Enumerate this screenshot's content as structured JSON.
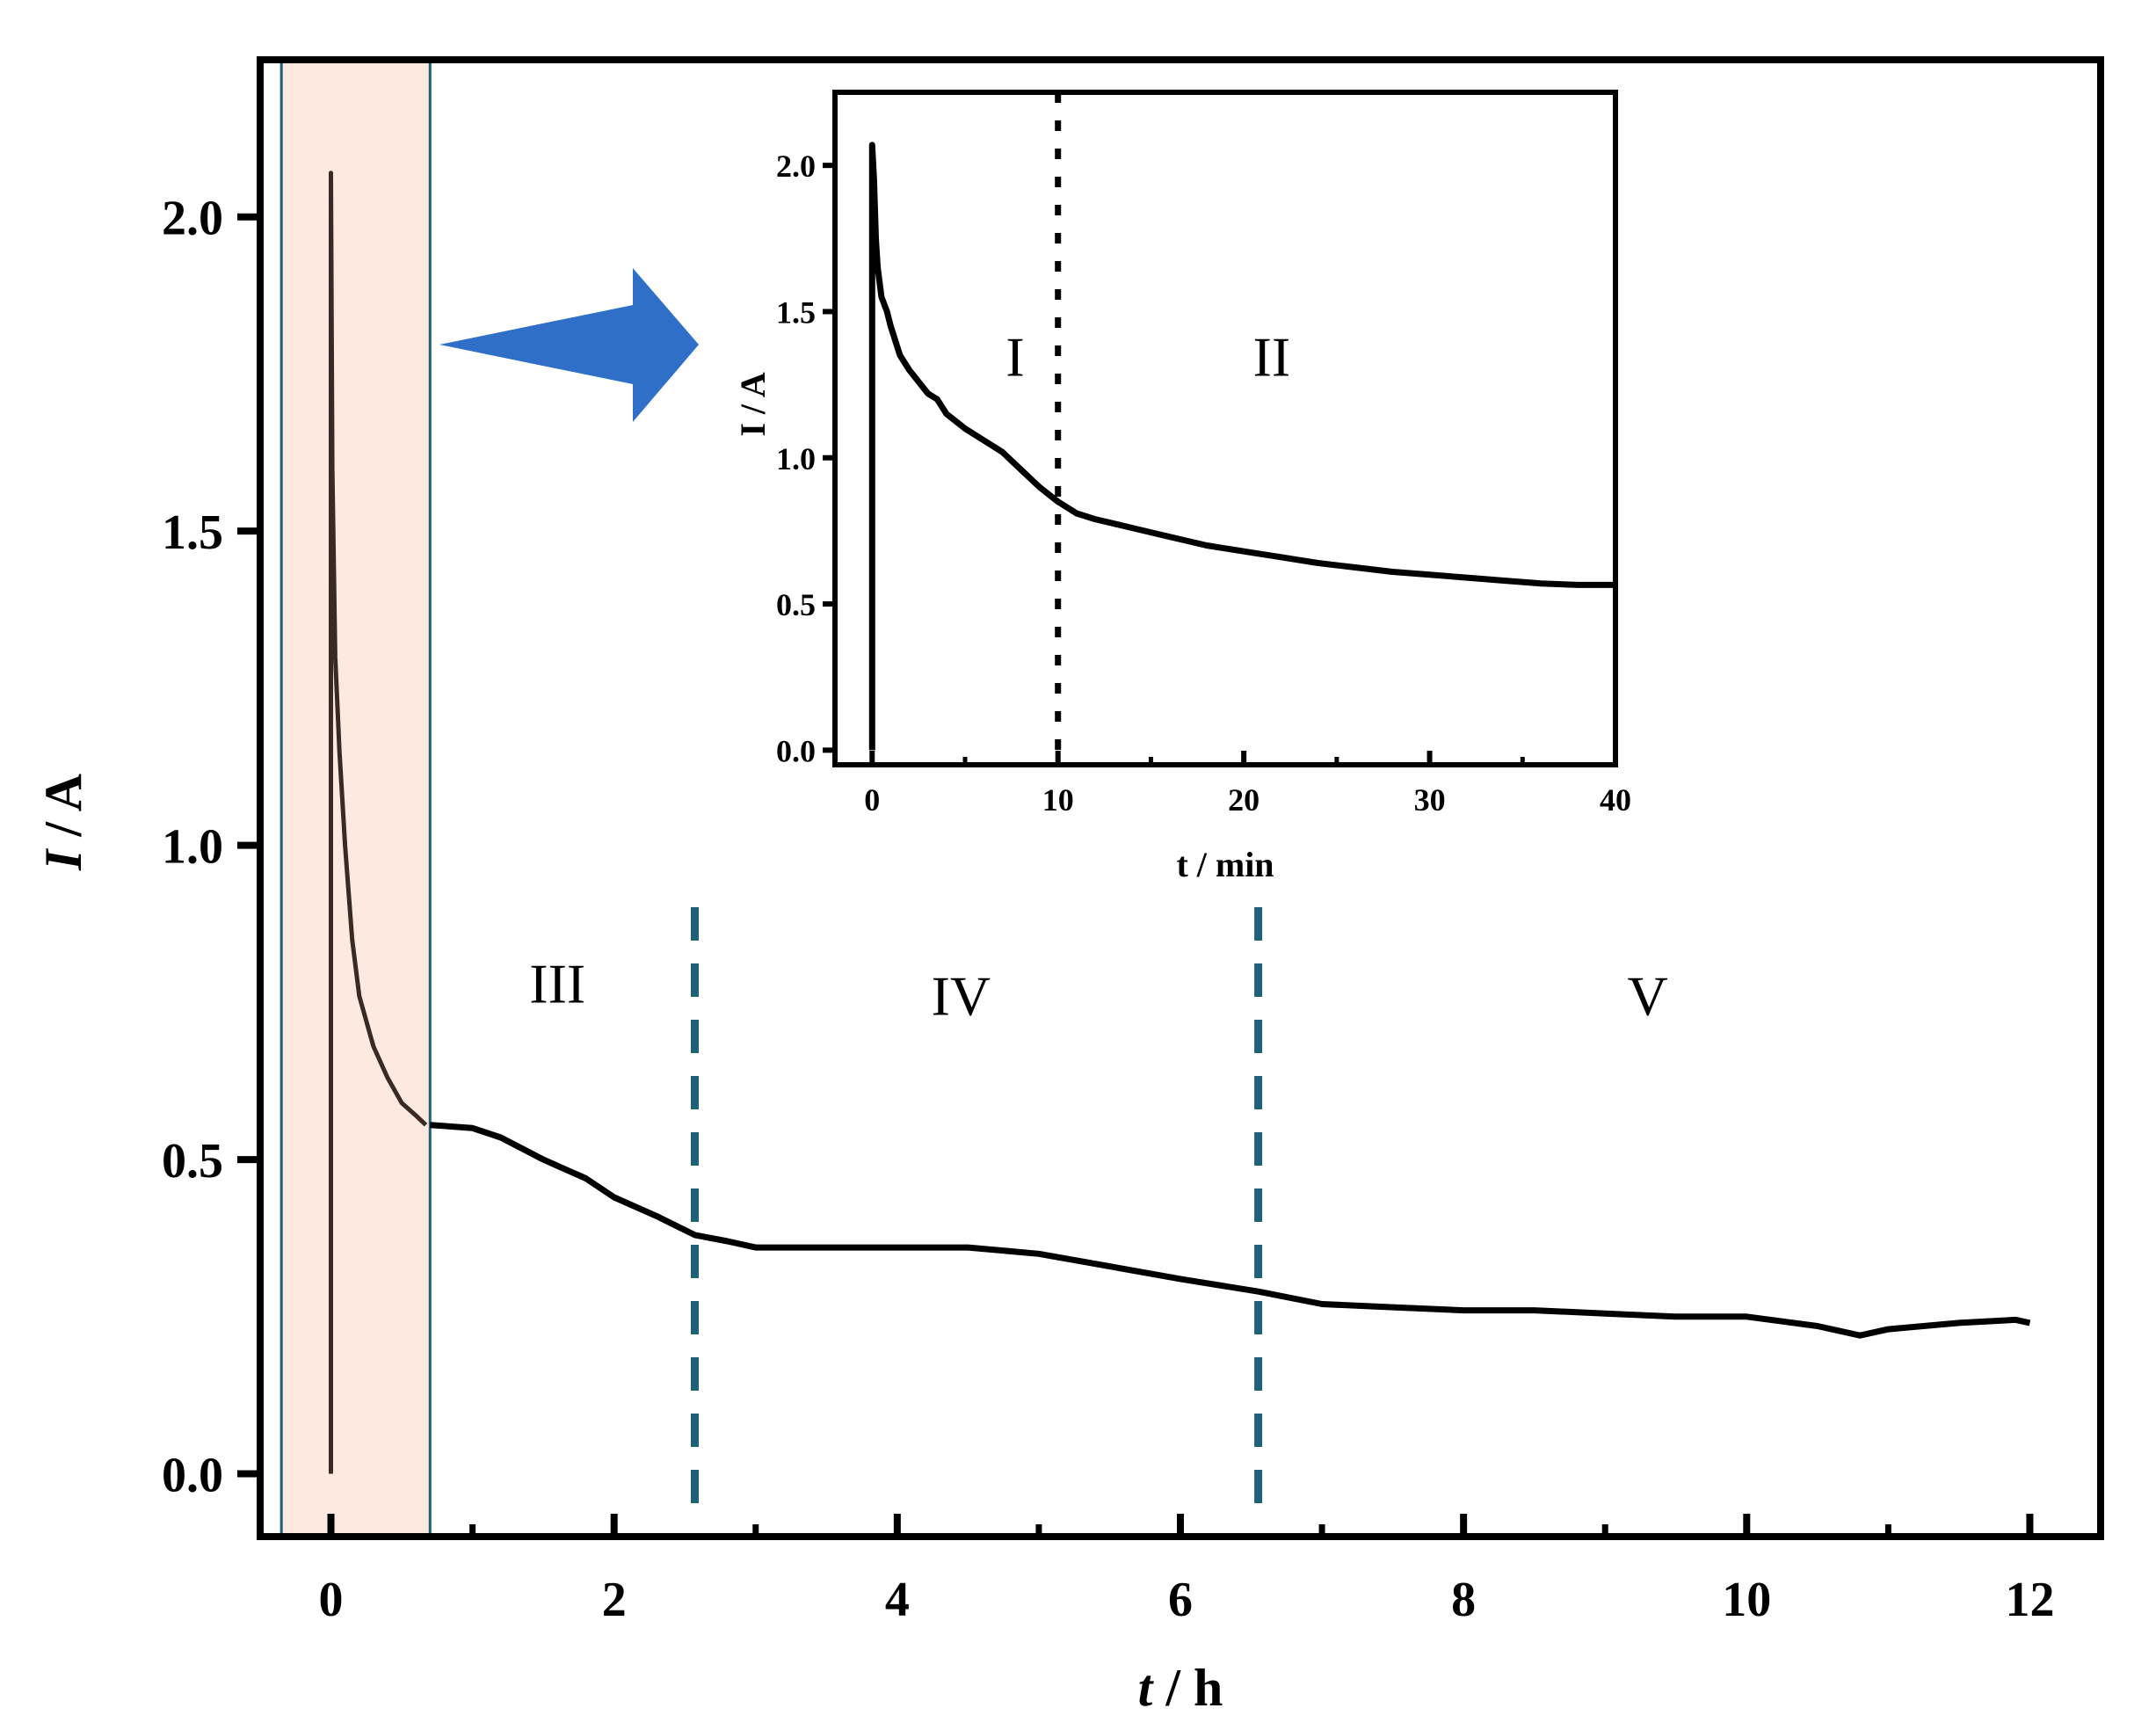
{
  "colors": {
    "highlight_fill": "#fde9e0",
    "highlight_border": "#1f5f7a",
    "arrow": "#2f6fc8",
    "divider_dashes": "#1f5f7a",
    "main_line": "#000000",
    "inset_region_line": "#3a2a25"
  },
  "chart_data": [
    {
      "id": "main",
      "type": "line",
      "xlabel": {
        "italic": "t",
        "rest": " / h"
      },
      "ylabel": {
        "italic": "I",
        "rest": " / A"
      },
      "xlim": [
        -0.5,
        12.5
      ],
      "ylim": [
        -0.1,
        2.25
      ],
      "xticks": [
        0,
        2,
        4,
        6,
        8,
        10,
        12
      ],
      "xtick_labels": [
        "0",
        "2",
        "4",
        "6",
        "8",
        "10",
        "12"
      ],
      "yticks": [
        0.0,
        0.5,
        1.0,
        1.5,
        2.0
      ],
      "ytick_labels": [
        "0.0",
        "0.5",
        "1.0",
        "1.5",
        "2.0"
      ],
      "highlight_region_x": [
        -0.35,
        0.7
      ],
      "dividers_x": [
        2.57,
        6.55
      ],
      "region_labels": [
        {
          "text": "III",
          "x": 1.6,
          "y": 0.75
        },
        {
          "text": "IV",
          "x": 4.45,
          "y": 0.73
        },
        {
          "text": "V",
          "x": 9.3,
          "y": 0.73
        }
      ],
      "series": [
        {
          "x": [
            0.0,
            0.0,
            0.01,
            0.03,
            0.06,
            0.1,
            0.15,
            0.2,
            0.3,
            0.4,
            0.5,
            0.6,
            0.67
          ],
          "values": [
            0.0,
            2.07,
            1.6,
            1.3,
            1.15,
            1.0,
            0.85,
            0.76,
            0.68,
            0.63,
            0.59,
            0.57,
            0.555
          ]
        },
        {
          "x": [
            0.7,
            1.0,
            1.2,
            1.5,
            1.8,
            2.0,
            2.3,
            2.57,
            2.8,
            3.0,
            3.5,
            4.0,
            4.5,
            5.0,
            5.5,
            6.0,
            6.55,
            7.0,
            7.5,
            8.0,
            8.5,
            9.0,
            9.5,
            10.0,
            10.5,
            10.8,
            11.0,
            11.5,
            11.9,
            12.0
          ],
          "values": [
            0.555,
            0.55,
            0.535,
            0.5,
            0.47,
            0.44,
            0.41,
            0.38,
            0.37,
            0.36,
            0.36,
            0.36,
            0.36,
            0.35,
            0.33,
            0.31,
            0.29,
            0.27,
            0.265,
            0.26,
            0.26,
            0.255,
            0.25,
            0.25,
            0.235,
            0.22,
            0.23,
            0.24,
            0.245,
            0.24
          ]
        }
      ]
    },
    {
      "id": "inset",
      "type": "line",
      "xlabel": "t / min",
      "ylabel": "I / A",
      "xlim": [
        -2,
        40
      ],
      "ylim": [
        -0.05,
        2.25
      ],
      "xticks": [
        0,
        10,
        20,
        30,
        40
      ],
      "xtick_labels": [
        "0",
        "10",
        "20",
        "30",
        "40"
      ],
      "yticks": [
        0.0,
        0.5,
        1.0,
        1.5,
        2.0
      ],
      "ytick_labels": [
        "0.0",
        "0.5",
        "1.0",
        "1.5",
        "2.0"
      ],
      "divider_x": 10,
      "region_labels": [
        {
          "text": "I",
          "x": 7.7,
          "y": 1.28
        },
        {
          "text": "II",
          "x": 21.5,
          "y": 1.28
        }
      ],
      "series": [
        {
          "x": [
            0.0,
            0.0,
            0.1,
            0.2,
            0.3,
            0.5,
            0.8,
            1.0,
            1.5,
            2.0,
            3.0,
            3.5,
            4.0,
            5.0,
            6.0,
            7.0,
            8.0,
            9.0,
            10.0,
            11.0,
            12.0,
            14.0,
            16.0,
            18.0,
            20.0,
            22.0,
            24.0,
            26.0,
            28.0,
            30.0,
            32.0,
            34.0,
            36.0,
            38.0,
            40.0
          ],
          "values": [
            0.0,
            2.07,
            1.95,
            1.75,
            1.65,
            1.55,
            1.5,
            1.45,
            1.35,
            1.3,
            1.22,
            1.2,
            1.15,
            1.1,
            1.06,
            1.02,
            0.96,
            0.9,
            0.85,
            0.81,
            0.79,
            0.76,
            0.73,
            0.7,
            0.68,
            0.66,
            0.64,
            0.625,
            0.61,
            0.6,
            0.59,
            0.58,
            0.57,
            0.565,
            0.565
          ]
        }
      ]
    }
  ]
}
